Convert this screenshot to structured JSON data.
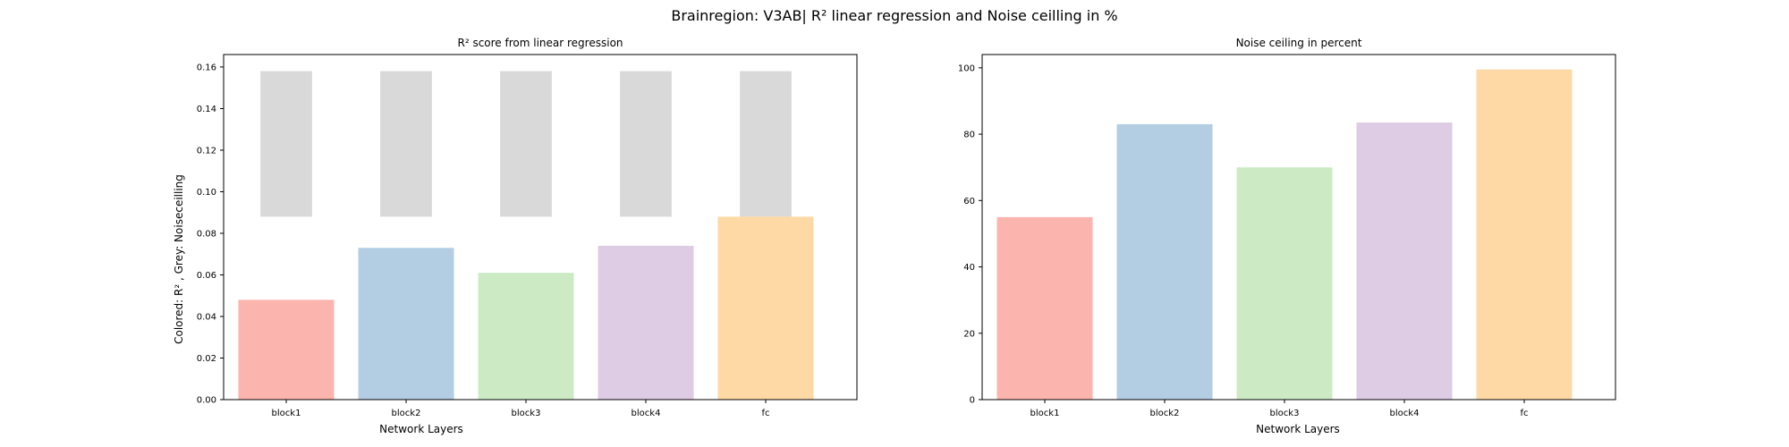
{
  "figure": {
    "suptitle": "Brainregion: V3AB| R² linear regression and Noise ceilling in %"
  },
  "colors": {
    "block1": "#fbb4ae",
    "block2": "#b3cde3",
    "block3": "#ccebc5",
    "block4": "#decbe4",
    "fc": "#fed9a6",
    "noise_ceiling_grey": "#d9d9d9"
  },
  "chart_data": [
    {
      "type": "bar",
      "title": "R² score from linear regression",
      "xlabel": "Network Layers",
      "ylabel": "Colored: R² , Grey: Noiseceilling",
      "categories": [
        "block1",
        "block2",
        "block3",
        "block4",
        "fc"
      ],
      "ylim": [
        0,
        0.166
      ],
      "yticks": [
        0.0,
        0.02,
        0.04,
        0.06,
        0.08,
        0.1,
        0.12,
        0.14,
        0.16
      ],
      "ytick_labels": [
        "0.00",
        "0.02",
        "0.04",
        "0.06",
        "0.08",
        "0.10",
        "0.12",
        "0.14",
        "0.16"
      ],
      "series": [
        {
          "name": "R²",
          "values": [
            0.048,
            0.073,
            0.061,
            0.074,
            0.088
          ]
        },
        {
          "name": "Noise ceiling (grey)",
          "bottom": [
            0.088,
            0.088,
            0.088,
            0.088,
            0.088
          ],
          "top": [
            0.158,
            0.158,
            0.158,
            0.158,
            0.158
          ]
        }
      ]
    },
    {
      "type": "bar",
      "title": "Noise ceiling in percent",
      "xlabel": "Network Layers",
      "ylabel": "",
      "categories": [
        "block1",
        "block2",
        "block3",
        "block4",
        "fc"
      ],
      "ylim": [
        0,
        104
      ],
      "yticks": [
        0,
        20,
        40,
        60,
        80,
        100
      ],
      "ytick_labels": [
        "0",
        "20",
        "40",
        "60",
        "80",
        "100"
      ],
      "series": [
        {
          "name": "Noise ceiling %",
          "values": [
            55,
            83,
            70,
            83.5,
            99.5
          ]
        }
      ]
    }
  ]
}
